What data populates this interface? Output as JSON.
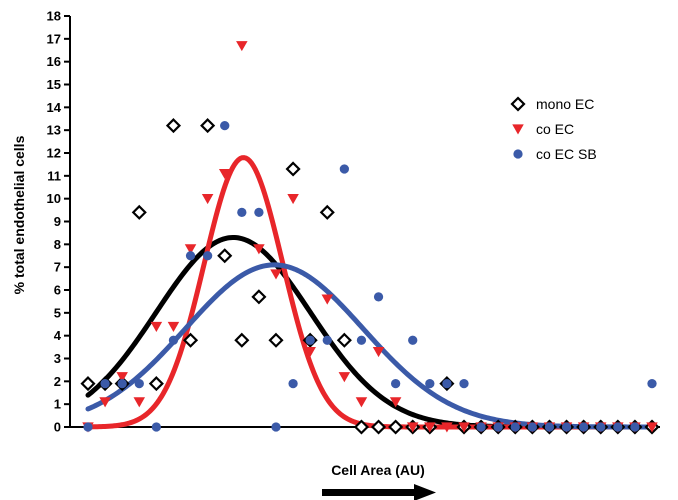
{
  "chart_data": {
    "type": "scatter",
    "title": "",
    "xlabel": "Cell Area (AU)",
    "ylabel": "% total endothelial cells",
    "x_axis_arrow": true,
    "x_tick_labels": "none",
    "x": [
      0,
      1,
      2,
      3,
      4,
      5,
      6,
      7,
      8,
      9,
      10,
      11,
      12,
      13,
      14,
      15,
      16,
      17,
      18,
      19,
      20,
      21,
      22,
      23,
      24,
      25,
      26,
      27,
      28,
      29,
      30,
      31,
      32,
      33
    ],
    "ylim": [
      0,
      18
    ],
    "yticks": [
      0,
      1,
      2,
      3,
      4,
      5,
      6,
      7,
      8,
      9,
      10,
      11,
      12,
      13,
      14,
      15,
      16,
      17,
      18
    ],
    "legend_position": "top-right",
    "series": [
      {
        "name": "mono EC",
        "marker": "diamond-open",
        "color": "#000000",
        "values": [
          1.9,
          1.9,
          1.9,
          9.4,
          1.9,
          13.2,
          3.8,
          13.2,
          7.5,
          3.8,
          5.7,
          3.8,
          11.3,
          3.8,
          9.4,
          3.8,
          0,
          0,
          0,
          0,
          0,
          1.9,
          0,
          0,
          0,
          0,
          0,
          0,
          0,
          0,
          0,
          0,
          0,
          0
        ],
        "fit": {
          "type": "gaussian",
          "amplitude": 8.3,
          "center": 8.5,
          "sigma": 4.5
        }
      },
      {
        "name": "co EC",
        "marker": "triangle-down",
        "color": "#e8262a",
        "values": [
          0,
          1.1,
          2.2,
          1.1,
          4.4,
          4.4,
          7.8,
          10,
          11.1,
          16.7,
          7.8,
          6.7,
          10,
          3.3,
          5.6,
          2.2,
          1.1,
          3.3,
          1.1,
          0,
          0,
          0,
          0,
          0,
          0,
          0,
          0,
          0,
          0,
          0,
          0,
          0,
          0,
          0
        ],
        "fit": {
          "type": "gaussian",
          "amplitude": 11.8,
          "center": 9.1,
          "sigma": 2.3
        }
      },
      {
        "name": "co EC SB",
        "marker": "circle",
        "color": "#3b5aa8",
        "values": [
          0,
          1.9,
          1.9,
          1.9,
          0,
          3.8,
          7.5,
          7.5,
          13.2,
          9.4,
          9.4,
          0,
          1.9,
          3.8,
          3.8,
          11.3,
          3.8,
          5.7,
          1.9,
          3.8,
          1.9,
          1.9,
          1.9,
          0,
          0,
          0,
          0,
          0,
          0,
          0,
          0,
          0,
          0,
          1.9
        ],
        "fit": {
          "type": "gaussian",
          "amplitude": 7.1,
          "center": 10.9,
          "sigma": 5.2
        }
      }
    ]
  }
}
